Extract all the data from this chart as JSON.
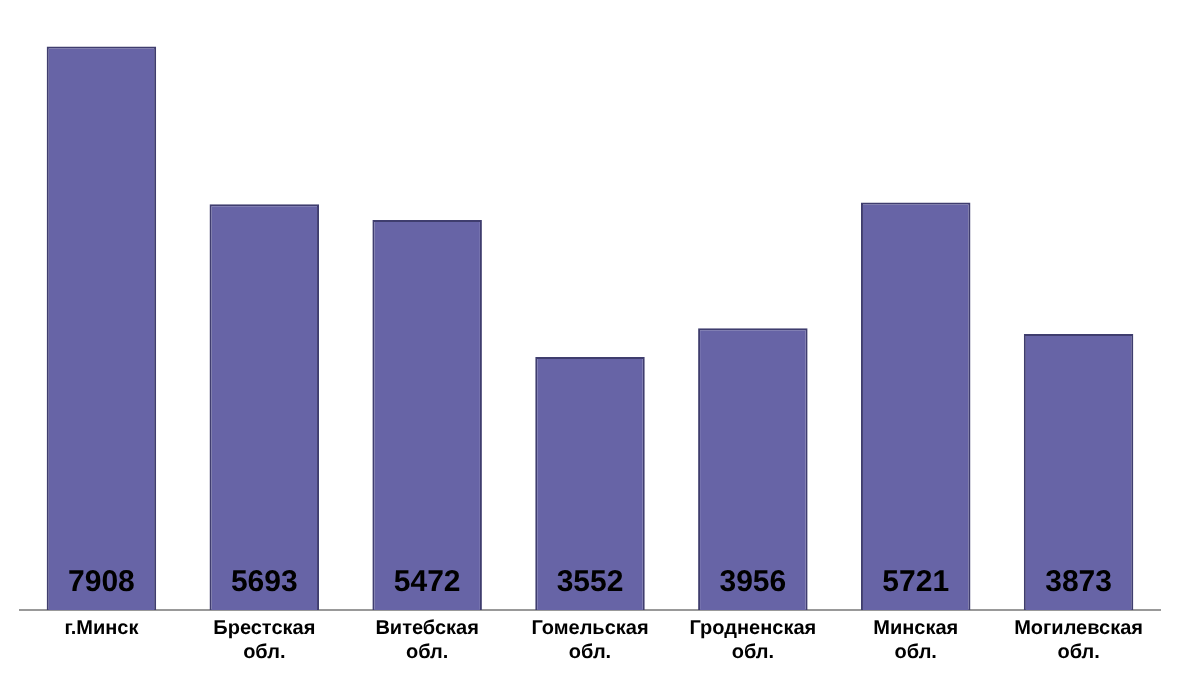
{
  "chart_data": {
    "type": "bar",
    "categories": [
      "г.Минск",
      "Брестская обл.",
      "Витебская обл.",
      "Гомельская обл.",
      "Гродненская обл.",
      "Минская обл.",
      "Могилевская обл."
    ],
    "values": [
      7908,
      5693,
      5472,
      3552,
      3956,
      5721,
      3873
    ],
    "color": "#6764a6",
    "data_labels": true,
    "grid": false,
    "legend": false,
    "tick_labels": "x"
  }
}
